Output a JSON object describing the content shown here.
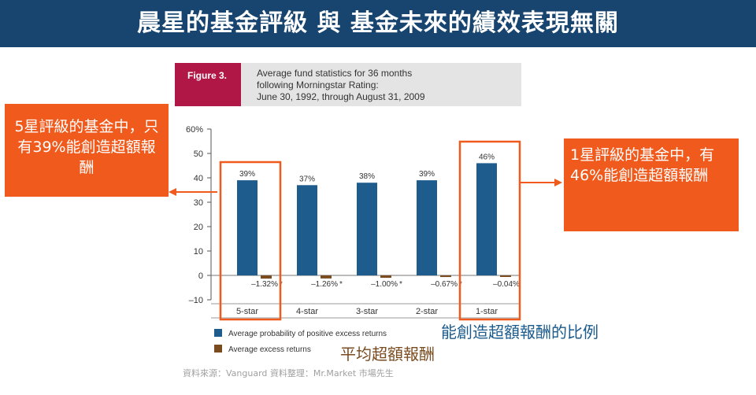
{
  "header": {
    "title": "晨星的基金評級 與 基金未來的績效表現無關"
  },
  "figure": {
    "label": "Figure 3.",
    "caption": "Average fund statistics for 36 months\nfollowing Morningstar Rating:\nJune 30, 1992, through August 31, 2009"
  },
  "callouts": {
    "left": "5星評級的基金中，只有39%能創造超額報酬",
    "right": "1星評級的基金中，有46%能創造超額報酬"
  },
  "annotations": {
    "probability": "能創造超額報酬的比例",
    "returns": "平均超額報酬"
  },
  "source": "資料來源：Vanguard   資料整理：Mr.Market 市場先生",
  "colors": {
    "header": "#17456f",
    "probability_bar": "#1f5c8e",
    "returns_bar": "#7a4b1e",
    "callout": "#f05a1c",
    "figure_label": "#b01746"
  },
  "chart_data": {
    "type": "bar",
    "categories": [
      "5-star",
      "4-star",
      "3-star",
      "2-star",
      "1-star"
    ],
    "series": [
      {
        "name": "Average probability of positive excess returns",
        "values": [
          39,
          37,
          38,
          39,
          46
        ],
        "labels": [
          "39%",
          "37%",
          "38%",
          "39%",
          "46%"
        ]
      },
      {
        "name": "Average excess returns",
        "values": [
          -1.32,
          -1.26,
          -1.0,
          -0.67,
          -0.04
        ],
        "labels": [
          "–1.32% *",
          "–1.26% *",
          "–1.00% *",
          "–0.67% *",
          "–0.04%"
        ]
      }
    ],
    "yticks": [
      "60%",
      "50",
      "40",
      "30",
      "20",
      "10",
      "0",
      "–10"
    ],
    "ylim": [
      -10,
      60
    ],
    "grid": false,
    "legend_position": "bottom-left",
    "highlighted_categories": [
      "5-star",
      "1-star"
    ]
  }
}
